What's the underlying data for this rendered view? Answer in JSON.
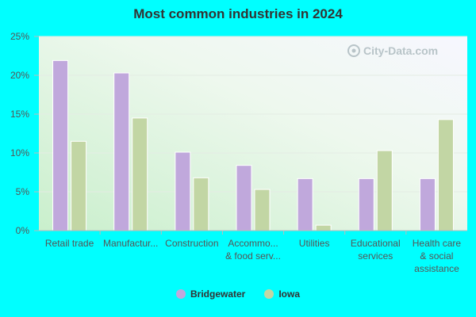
{
  "chart_data": {
    "type": "bar",
    "title": "Most common industries in 2024",
    "categories": [
      [
        "Retail trade"
      ],
      [
        "Manufactur..."
      ],
      [
        "Construction"
      ],
      [
        "Accommo...",
        "& food serv..."
      ],
      [
        "Utilities"
      ],
      [
        "Educational",
        "services"
      ],
      [
        "Health care",
        "& social",
        "assistance"
      ]
    ],
    "series": [
      {
        "name": "Bridgewater",
        "color": "#c0a8dc",
        "values": [
          21.9,
          20.3,
          10.1,
          8.4,
          6.7,
          6.7,
          6.7
        ]
      },
      {
        "name": "Iowa",
        "color": "#c2d6a4",
        "values": [
          11.5,
          14.5,
          6.8,
          5.3,
          0.7,
          10.3,
          14.3
        ]
      }
    ],
    "ylim": [
      0,
      25
    ],
    "yticks": [
      "0%",
      "5%",
      "10%",
      "15%",
      "20%",
      "25%"
    ],
    "ytick_values": [
      0,
      5,
      10,
      15,
      20,
      25
    ],
    "legend_position": "bottom-center",
    "grid": true
  },
  "watermark": "City-Data.com"
}
